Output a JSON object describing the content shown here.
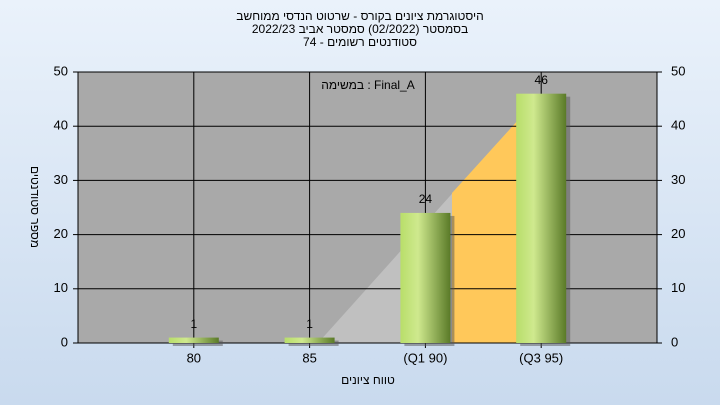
{
  "chart_data": {
    "type": "bar",
    "title": "היסטוגרמת ציונים בקורס - שרטוט הנדסי ממוחשב",
    "subtitle": "בסמסטר  (02/2022)  סמסטר אביב 2022/23",
    "subtitle2": "סטודנטים רשומים - 74",
    "annotation": "במשימה : Final_A",
    "y_label": "מספר סטודנטים",
    "x_label": "טווח ציונים",
    "categories": [
      "80",
      "85",
      "(Q1 90)",
      "(Q3 95)"
    ],
    "values": [
      1,
      1,
      24,
      46
    ],
    "color": "#9cc84a",
    "ylim": [
      0,
      50
    ],
    "yticks": [
      0,
      10,
      20,
      30,
      40,
      50
    ],
    "grid": true
  }
}
